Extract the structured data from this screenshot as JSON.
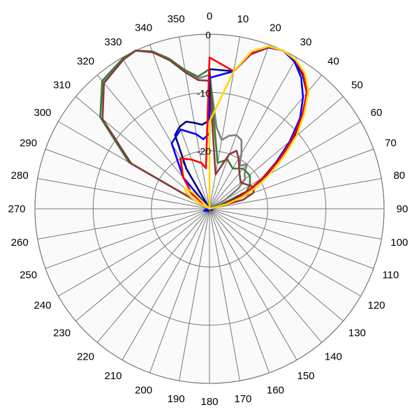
{
  "chart_data": {
    "type": "line",
    "projection": "polar",
    "title": "",
    "angle_direction": "clockwise",
    "zero_at": "top",
    "angle_ticks": [
      "0",
      "10",
      "20",
      "30",
      "40",
      "50",
      "60",
      "70",
      "80",
      "90",
      "100",
      "110",
      "120",
      "130",
      "140",
      "150",
      "160",
      "170",
      "180",
      "190",
      "200",
      "210",
      "220",
      "230",
      "240",
      "250",
      "260",
      "270",
      "280",
      "290",
      "300",
      "310",
      "320",
      "330",
      "340",
      "350"
    ],
    "radial_range": [
      -30,
      0
    ],
    "radial_ticks": [
      0,
      -10,
      -20
    ],
    "radial_tick_labels": [
      "0",
      "-10",
      "-20"
    ],
    "grid": true,
    "background": "#fafafa",
    "series": [
      {
        "color": "#808080",
        "points": [
          [
            0,
            -7
          ],
          [
            5,
            -16
          ],
          [
            10,
            -18
          ],
          [
            15,
            -17
          ],
          [
            20,
            -16.5
          ],
          [
            25,
            -17
          ],
          [
            30,
            -19
          ],
          [
            35,
            -21
          ],
          [
            40,
            -20
          ],
          [
            45,
            -21.5
          ],
          [
            50,
            -22
          ],
          [
            55,
            -24
          ],
          [
            60,
            -27
          ],
          [
            70,
            -30
          ],
          [
            280,
            -30
          ],
          [
            300,
            -14
          ],
          [
            310,
            -5.5
          ],
          [
            320,
            -1.5
          ],
          [
            330,
            -0.3
          ],
          [
            335,
            0
          ],
          [
            340,
            -1.3
          ],
          [
            345,
            -3.5
          ],
          [
            350,
            -6
          ],
          [
            355,
            -7.5
          ],
          [
            360,
            -7
          ]
        ]
      },
      {
        "color": "#3a7d3a",
        "points": [
          [
            0,
            -6
          ],
          [
            10,
            -22
          ],
          [
            20,
            -21
          ],
          [
            30,
            -22
          ],
          [
            40,
            -21
          ],
          [
            50,
            -21
          ],
          [
            55,
            -21.5
          ],
          [
            60,
            -22
          ],
          [
            65,
            -23
          ],
          [
            70,
            -28
          ],
          [
            75,
            -30
          ],
          [
            280,
            -30
          ],
          [
            300,
            -14
          ],
          [
            310,
            -5.5
          ],
          [
            320,
            -1.3
          ],
          [
            330,
            -0.2
          ],
          [
            335,
            0
          ],
          [
            340,
            -1.2
          ],
          [
            345,
            -3.3
          ],
          [
            350,
            -5.8
          ],
          [
            355,
            -7.2
          ],
          [
            360,
            -6
          ]
        ]
      },
      {
        "color": "#8b3a3a",
        "points": [
          [
            0,
            -8
          ],
          [
            10,
            -24
          ],
          [
            20,
            -20
          ],
          [
            25,
            -19
          ],
          [
            30,
            -20
          ],
          [
            40,
            -22
          ],
          [
            50,
            -23
          ],
          [
            60,
            -22
          ],
          [
            65,
            -21.5
          ],
          [
            70,
            -22
          ],
          [
            75,
            -24
          ],
          [
            80,
            -30
          ],
          [
            280,
            -30
          ],
          [
            300,
            -14.5
          ],
          [
            310,
            -6
          ],
          [
            320,
            -1.8
          ],
          [
            330,
            -0.4
          ],
          [
            335,
            0
          ],
          [
            340,
            -1.4
          ],
          [
            345,
            -3.6
          ],
          [
            350,
            -6.2
          ],
          [
            355,
            -7.8
          ],
          [
            360,
            -8
          ]
        ]
      },
      {
        "color": "#000080",
        "points": [
          [
            0,
            -6
          ],
          [
            10,
            -6
          ],
          [
            15,
            -2.2
          ],
          [
            20,
            -0.4
          ],
          [
            25,
            0
          ],
          [
            30,
            -0.6
          ],
          [
            35,
            -2
          ],
          [
            40,
            -4
          ],
          [
            45,
            -7
          ],
          [
            50,
            -11
          ],
          [
            55,
            -15.5
          ],
          [
            60,
            -19
          ],
          [
            65,
            -22.5
          ],
          [
            70,
            -26
          ],
          [
            75,
            -28
          ],
          [
            80,
            -30
          ],
          [
            320,
            -30
          ],
          [
            330,
            -22
          ],
          [
            335,
            -16
          ],
          [
            340,
            -15
          ],
          [
            345,
            -14.5
          ],
          [
            350,
            -15
          ],
          [
            355,
            -15.5
          ],
          [
            360,
            -14.8
          ]
        ]
      },
      {
        "color": "#0000ff",
        "points": [
          [
            0,
            -7.5
          ],
          [
            10,
            -6
          ],
          [
            15,
            -2.5
          ],
          [
            20,
            -0.5
          ],
          [
            25,
            0
          ],
          [
            30,
            -0.8
          ],
          [
            35,
            -2.5
          ],
          [
            40,
            -5
          ],
          [
            45,
            -8
          ],
          [
            50,
            -12
          ],
          [
            55,
            -16
          ],
          [
            60,
            -19.5
          ],
          [
            65,
            -22.5
          ],
          [
            70,
            -25
          ],
          [
            75,
            -27
          ],
          [
            80,
            -30
          ],
          [
            95,
            -30
          ],
          [
            110,
            -29.5
          ],
          [
            125,
            -29.7
          ],
          [
            140,
            -30
          ],
          [
            190,
            -30
          ],
          [
            210,
            -29.5
          ],
          [
            230,
            -29.5
          ],
          [
            250,
            -29
          ],
          [
            265,
            -29.5
          ],
          [
            270,
            -30
          ],
          [
            300,
            -30
          ],
          [
            320,
            -23
          ],
          [
            330,
            -17
          ],
          [
            340,
            -15.5
          ],
          [
            350,
            -17
          ],
          [
            355,
            -18
          ],
          [
            360,
            -17
          ]
        ]
      },
      {
        "color": "#ff0000",
        "points": [
          [
            0,
            -4
          ],
          [
            10,
            -6
          ],
          [
            15,
            -2.4
          ],
          [
            20,
            -0.4
          ],
          [
            25,
            0
          ],
          [
            30,
            -0.5
          ],
          [
            35,
            -1.8
          ],
          [
            40,
            -4
          ],
          [
            45,
            -7.5
          ],
          [
            50,
            -11.5
          ],
          [
            55,
            -15.5
          ],
          [
            60,
            -19.5
          ],
          [
            65,
            -22.5
          ],
          [
            70,
            -25.5
          ],
          [
            75,
            -28
          ],
          [
            80,
            -30
          ],
          [
            300,
            -30
          ],
          [
            310,
            -26
          ],
          [
            315,
            -25
          ],
          [
            320,
            -23
          ],
          [
            330,
            -20
          ],
          [
            340,
            -21
          ],
          [
            350,
            -22
          ],
          [
            355,
            -23
          ],
          [
            360,
            -4
          ]
        ]
      },
      {
        "color": "#ffd700",
        "points": [
          [
            0,
            -15
          ],
          [
            10,
            -6
          ],
          [
            15,
            -2
          ],
          [
            20,
            -0.3
          ],
          [
            25,
            0
          ],
          [
            30,
            -0.4
          ],
          [
            35,
            -1.5
          ],
          [
            40,
            -3.5
          ],
          [
            45,
            -7
          ],
          [
            50,
            -10.5
          ],
          [
            55,
            -14.5
          ],
          [
            60,
            -18
          ],
          [
            65,
            -21
          ],
          [
            70,
            -24
          ],
          [
            75,
            -27
          ],
          [
            80,
            -30
          ],
          [
            295,
            -30
          ],
          [
            300,
            -27
          ],
          [
            305,
            -25
          ],
          [
            310,
            -24.5
          ],
          [
            315,
            -26
          ],
          [
            320,
            -30
          ],
          [
            355,
            -30
          ],
          [
            360,
            -15
          ]
        ]
      }
    ]
  }
}
